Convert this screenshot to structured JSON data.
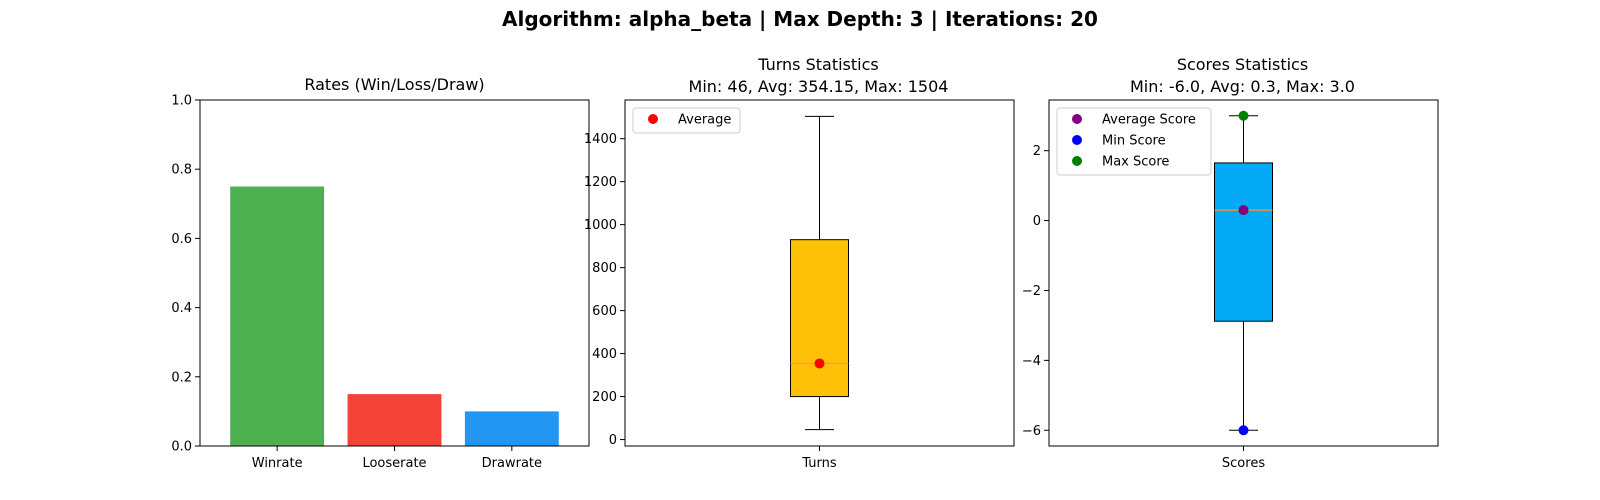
{
  "suptitle": "Algorithm: alpha_beta | Max Depth: 3 | Iterations: 20",
  "chart_data": [
    {
      "type": "bar",
      "title": "Rates (Win/Loss/Draw)",
      "categories": [
        "Winrate",
        "Looserate",
        "Drawrate"
      ],
      "values": [
        0.75,
        0.15,
        0.1
      ],
      "colors": [
        "#4caf50",
        "#f44336",
        "#2196f3"
      ],
      "ylim": [
        0,
        1.0
      ],
      "yticks": [
        "0.0",
        "0.2",
        "0.4",
        "0.6",
        "0.8",
        "1.0"
      ]
    },
    {
      "type": "box",
      "title": "Turns Statistics",
      "subtitle": "Min: 46, Avg: 354.15, Max: 1504",
      "category": "Turns",
      "box_color": "#ffc107",
      "median_color": "#f39c3c",
      "stats": {
        "min": 46,
        "q1": 200,
        "median": 354,
        "q3": 930,
        "max": 1504
      },
      "points": [
        {
          "name": "Average",
          "value": 354.15,
          "color": "#ff0000"
        }
      ],
      "legend": [
        {
          "label": "Average",
          "color": "#ff0000"
        }
      ],
      "ylim": [
        -30,
        1580
      ],
      "yticks": [
        "0",
        "200",
        "400",
        "600",
        "800",
        "1000",
        "1200",
        "1400"
      ]
    },
    {
      "type": "box",
      "title": "Scores Statistics",
      "subtitle": "Min: -6.0, Avg: 0.3, Max: 3.0",
      "category": "Scores",
      "box_color": "#03a9f4",
      "median_color": "#f39c3c",
      "stats": {
        "min": -6.0,
        "q1": -2.88,
        "median": 0.3,
        "q3": 1.65,
        "max": 3.0
      },
      "points": [
        {
          "name": "Average Score",
          "value": 0.3,
          "color": "#800080"
        },
        {
          "name": "Min Score",
          "value": -6.0,
          "color": "#0000ff"
        },
        {
          "name": "Max Score",
          "value": 3.0,
          "color": "#008000"
        }
      ],
      "legend": [
        {
          "label": "Average Score",
          "color": "#800080"
        },
        {
          "label": "Min Score",
          "color": "#0000ff"
        },
        {
          "label": "Max Score",
          "color": "#008000"
        }
      ],
      "ylim": [
        -6.45,
        3.45
      ],
      "yticks": [
        "−6",
        "−4",
        "−2",
        "0",
        "2"
      ]
    }
  ]
}
